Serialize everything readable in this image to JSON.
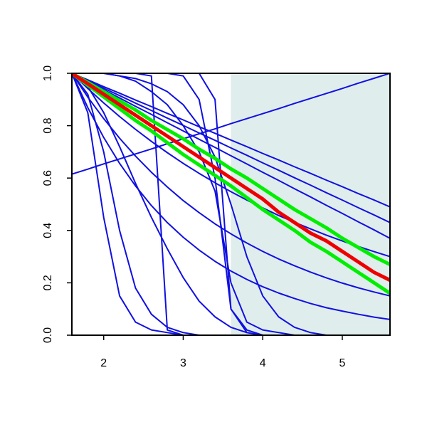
{
  "chart_data": {
    "type": "line",
    "x": [
      1.6,
      1.8,
      2.0,
      2.2,
      2.4,
      2.6,
      2.8,
      3.0,
      3.2,
      3.4,
      3.6,
      3.8,
      4.0,
      4.2,
      4.4,
      4.6,
      4.8,
      5.0,
      5.2,
      5.4,
      5.6
    ],
    "xlim": [
      1.6,
      5.6
    ],
    "ylim": [
      0,
      1
    ],
    "xticks": [
      2,
      3,
      4,
      5
    ],
    "yticks": [
      {
        "value": 0,
        "label": "0.0"
      },
      {
        "value": 0.2,
        "label": "0.2"
      },
      {
        "value": 0.4,
        "label": "0.4"
      },
      {
        "value": 0.6,
        "label": "0.6"
      },
      {
        "value": 0.8,
        "label": "0.8"
      },
      {
        "value": 1,
        "label": "1.0"
      }
    ],
    "shaded_x": [
      3.6,
      5.6
    ],
    "shade_color": "#e0eded",
    "series": [
      {
        "color": "#1010e0",
        "width": 2,
        "values": [
          0.615,
          0.634,
          0.654,
          0.673,
          0.692,
          0.711,
          0.731,
          0.75,
          0.769,
          0.788,
          0.808,
          0.827,
          0.846,
          0.865,
          0.885,
          0.904,
          0.923,
          0.942,
          0.962,
          0.981,
          1.0
        ]
      },
      {
        "color": "#1010e0",
        "width": 2,
        "values": [
          1,
          0.975,
          0.949,
          0.924,
          0.898,
          0.873,
          0.847,
          0.822,
          0.796,
          0.771,
          0.745,
          0.72,
          0.694,
          0.669,
          0.643,
          0.618,
          0.592,
          0.567,
          0.541,
          0.516,
          0.49
        ]
      },
      {
        "color": "#1010e0",
        "width": 2,
        "values": [
          1,
          0.972,
          0.943,
          0.915,
          0.886,
          0.858,
          0.829,
          0.801,
          0.772,
          0.744,
          0.715,
          0.687,
          0.658,
          0.63,
          0.601,
          0.573,
          0.544,
          0.516,
          0.487,
          0.459,
          0.43
        ]
      },
      {
        "color": "#1010e0",
        "width": 2,
        "values": [
          1,
          0.969,
          0.937,
          0.906,
          0.874,
          0.843,
          0.811,
          0.78,
          0.748,
          0.717,
          0.685,
          0.654,
          0.622,
          0.591,
          0.559,
          0.528,
          0.496,
          0.465,
          0.433,
          0.402,
          0.37
        ]
      },
      {
        "color": "#1010e0",
        "width": 2,
        "values": [
          1,
          0.942,
          0.887,
          0.835,
          0.786,
          0.74,
          0.697,
          0.656,
          0.618,
          0.582,
          0.548,
          0.516,
          0.486,
          0.457,
          0.431,
          0.406,
          0.382,
          0.36,
          0.339,
          0.319,
          0.3
        ]
      },
      {
        "color": "#1010e0",
        "width": 2,
        "values": [
          1,
          0.909,
          0.827,
          0.752,
          0.684,
          0.622,
          0.566,
          0.514,
          0.468,
          0.425,
          0.387,
          0.352,
          0.32,
          0.291,
          0.265,
          0.241,
          0.219,
          0.199,
          0.181,
          0.165,
          0.15
        ]
      },
      {
        "color": "#1010e0",
        "width": 2,
        "values": [
          1,
          0.869,
          0.755,
          0.656,
          0.57,
          0.495,
          0.43,
          0.374,
          0.325,
          0.282,
          0.245,
          0.213,
          0.185,
          0.161,
          0.14,
          0.121,
          0.105,
          0.092,
          0.08,
          0.069,
          0.06
        ]
      },
      {
        "color": "#1010e0",
        "width": 2,
        "values": [
          1,
          0.85,
          0.45,
          0.15,
          0.05,
          0.02,
          0.01,
          0,
          0,
          0,
          0,
          0,
          0,
          0,
          0,
          0,
          0,
          0,
          0,
          0,
          0
        ]
      },
      {
        "color": "#1010e0",
        "width": 2,
        "values": [
          1,
          0.92,
          0.7,
          0.4,
          0.18,
          0.08,
          0.03,
          0.01,
          0,
          0,
          0,
          0,
          0,
          0,
          0,
          0,
          0,
          0,
          0,
          0,
          0
        ]
      },
      {
        "color": "#1010e0",
        "width": 2,
        "values": [
          1,
          0.95,
          0.85,
          0.72,
          0.58,
          0.45,
          0.33,
          0.22,
          0.13,
          0.07,
          0.03,
          0.01,
          0,
          0,
          0,
          0,
          0,
          0,
          0,
          0,
          0
        ]
      },
      {
        "color": "#1010e0",
        "width": 2,
        "values": [
          1,
          1,
          1,
          1,
          1,
          0.99,
          0.02,
          0,
          0,
          0,
          0,
          0,
          0,
          0,
          0,
          0,
          0,
          0,
          0,
          0,
          0
        ]
      },
      {
        "color": "#1010e0",
        "width": 2,
        "values": [
          1,
          1,
          1,
          1,
          1,
          1,
          1,
          1,
          1,
          0.9,
          0.1,
          0.01,
          0,
          0,
          0,
          0,
          0,
          0,
          0,
          0,
          0
        ]
      },
      {
        "color": "#1010e0",
        "width": 2,
        "values": [
          1,
          1,
          1,
          1,
          1,
          1,
          1,
          0.99,
          0.9,
          0.6,
          0.1,
          0.02,
          0,
          0,
          0,
          0,
          0,
          0,
          0,
          0,
          0
        ]
      },
      {
        "color": "#1010e0",
        "width": 2,
        "values": [
          1,
          1,
          1,
          0.99,
          0.98,
          0.96,
          0.93,
          0.88,
          0.8,
          0.68,
          0.5,
          0.3,
          0.15,
          0.07,
          0.03,
          0.01,
          0,
          0,
          0,
          0,
          0
        ]
      },
      {
        "color": "#1010e0",
        "width": 2,
        "values": [
          1,
          1,
          1,
          0.99,
          0.97,
          0.93,
          0.88,
          0.8,
          0.7,
          0.55,
          0.2,
          0.05,
          0.02,
          0.01,
          0,
          0,
          0,
          0,
          0,
          0,
          0
        ]
      },
      {
        "color": "#00ee00",
        "width": 5,
        "values": [
          1,
          0.965,
          0.93,
          0.895,
          0.86,
          0.82,
          0.785,
          0.75,
          0.71,
          0.675,
          0.635,
          0.6,
          0.56,
          0.52,
          0.48,
          0.445,
          0.41,
          0.37,
          0.335,
          0.3,
          0.27
        ]
      },
      {
        "color": "#00ee00",
        "width": 5,
        "values": [
          1,
          0.955,
          0.91,
          0.865,
          0.82,
          0.78,
          0.735,
          0.69,
          0.65,
          0.61,
          0.57,
          0.525,
          0.48,
          0.44,
          0.4,
          0.355,
          0.32,
          0.28,
          0.24,
          0.2,
          0.16
        ]
      },
      {
        "color": "#ee0000",
        "width": 5,
        "values": [
          1,
          0.96,
          0.92,
          0.88,
          0.84,
          0.8,
          0.76,
          0.72,
          0.68,
          0.64,
          0.6,
          0.56,
          0.52,
          0.47,
          0.43,
          0.39,
          0.36,
          0.32,
          0.28,
          0.24,
          0.21
        ]
      }
    ]
  }
}
